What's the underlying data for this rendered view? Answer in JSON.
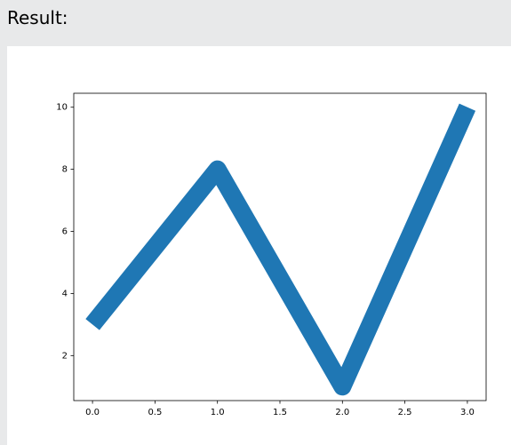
{
  "panel_label": "Result:",
  "chart_data": {
    "type": "line",
    "x": [
      0,
      1,
      2,
      3
    ],
    "series": [
      {
        "color": "#1f77b4",
        "values": [
          3,
          8,
          1,
          10
        ]
      }
    ],
    "xlim": [
      -0.15,
      3.15
    ],
    "ylim": [
      0.55,
      10.45
    ],
    "xticks": [
      {
        "value": 0,
        "label": "0.0"
      },
      0.5,
      {
        "value": 1,
        "label": "1.0"
      },
      1.5,
      {
        "value": 2,
        "label": "2.0"
      },
      2.5,
      {
        "value": 3,
        "label": "3.0"
      }
    ],
    "yticks": [
      2,
      4,
      6,
      8,
      10
    ],
    "grid": false
  }
}
